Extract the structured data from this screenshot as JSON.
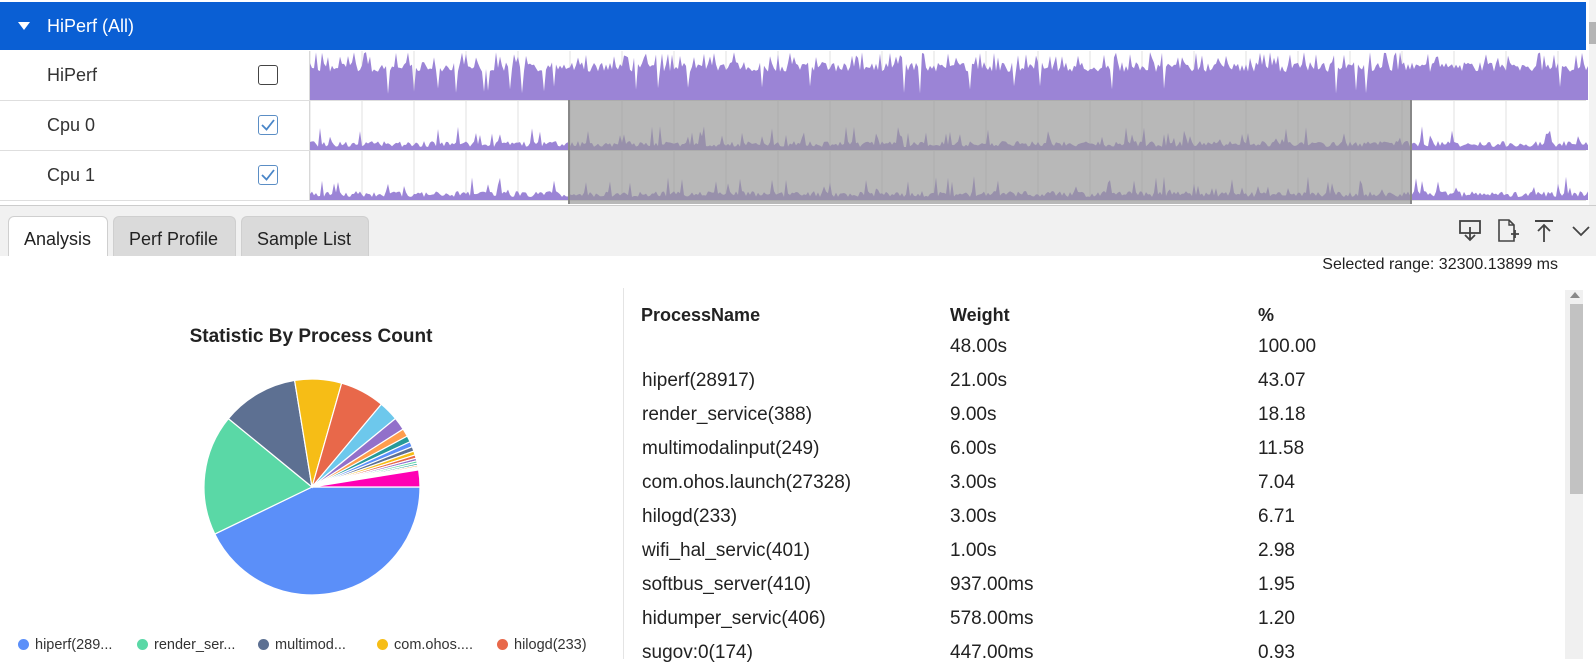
{
  "group": {
    "title": "HiPerf (All)"
  },
  "rows": [
    {
      "name": "HiPerf",
      "checked": false
    },
    {
      "name": "Cpu 0",
      "checked": true
    },
    {
      "name": "Cpu 1",
      "checked": true
    }
  ],
  "colors": {
    "header": "#0a5fd4",
    "lane": "#9b84d6",
    "selection": "#969696"
  },
  "tabs": [
    {
      "label": "Analysis",
      "active": true
    },
    {
      "label": "Perf Profile",
      "active": false
    },
    {
      "label": "Sample List",
      "active": false
    }
  ],
  "toolbar_icons": [
    "download-icon",
    "add-file-icon",
    "pin-top-icon",
    "chevron-down-icon"
  ],
  "selected_range": "Selected range: 32300.13899 ms",
  "chart_data": {
    "type": "pie",
    "title": "Statistic By Process Count",
    "slices": [
      {
        "label": "hiperf(28917)",
        "value": 43.07,
        "color": "#5b8ff9"
      },
      {
        "label": "render_service(388)",
        "value": 18.18,
        "color": "#5ad8a6"
      },
      {
        "label": "multimodalinput(249)",
        "value": 11.58,
        "color": "#5d7092"
      },
      {
        "label": "com.ohos.launch(27328)",
        "value": 7.04,
        "color": "#f6bd16"
      },
      {
        "label": "hilogd(233)",
        "value": 6.71,
        "color": "#e8684a"
      },
      {
        "label": "wifi_hal_servic(401)",
        "value": 2.98,
        "color": "#6dc8ec"
      },
      {
        "label": "softbus_server(410)",
        "value": 1.95,
        "color": "#9270ca"
      },
      {
        "label": "hidumper_servic(406)",
        "value": 1.2,
        "color": "#ff9d4d"
      },
      {
        "label": "sugov:0(174)",
        "value": 0.93,
        "color": "#269a99"
      },
      {
        "label": "",
        "value": 0.8,
        "color": "#5b8ff9"
      },
      {
        "label": "",
        "value": 0.7,
        "color": "#5d7092"
      },
      {
        "label": "",
        "value": 0.6,
        "color": "#f6bd16"
      },
      {
        "label": "",
        "value": 0.5,
        "color": "#e8684a"
      },
      {
        "label": "",
        "value": 0.4,
        "color": "#9270ca"
      },
      {
        "label": "",
        "value": 0.35,
        "color": "#5ad8a6"
      },
      {
        "label": "",
        "value": 0.3,
        "color": "#269a99"
      },
      {
        "label": "",
        "value": 0.25,
        "color": "#ff9d4d"
      },
      {
        "label": "",
        "value": 0.2,
        "color": "#6dc8ec"
      },
      {
        "label": "",
        "value": 0.15,
        "color": "#5b8ff9"
      },
      {
        "label": "",
        "value": 0.12,
        "color": "#e8684a"
      },
      {
        "label": "",
        "value": 2.55,
        "color": "#ff00b4"
      }
    ],
    "legend": [
      {
        "label": "hiperf(289...",
        "color": "#5b8ff9"
      },
      {
        "label": "render_ser...",
        "color": "#5ad8a6"
      },
      {
        "label": "multimod...",
        "color": "#5d7092"
      },
      {
        "label": "com.ohos....",
        "color": "#f6bd16"
      },
      {
        "label": "hilogd(233)",
        "color": "#e8684a"
      }
    ]
  },
  "table": {
    "headers": [
      "ProcessName",
      "Weight",
      "%"
    ],
    "rows": [
      [
        "",
        "48.00s",
        "100.00"
      ],
      [
        "hiperf(28917)",
        "21.00s",
        "43.07"
      ],
      [
        "render_service(388)",
        "9.00s",
        "18.18"
      ],
      [
        "multimodalinput(249)",
        "6.00s",
        "11.58"
      ],
      [
        "com.ohos.launch(27328)",
        "3.00s",
        "7.04"
      ],
      [
        "hilogd(233)",
        "3.00s",
        "6.71"
      ],
      [
        "wifi_hal_servic(401)",
        "1.00s",
        "2.98"
      ],
      [
        "softbus_server(410)",
        "937.00ms",
        "1.95"
      ],
      [
        "hidumper_servic(406)",
        "578.00ms",
        "1.20"
      ],
      [
        "sugov:0(174)",
        "447.00ms",
        "0.93"
      ]
    ]
  }
}
